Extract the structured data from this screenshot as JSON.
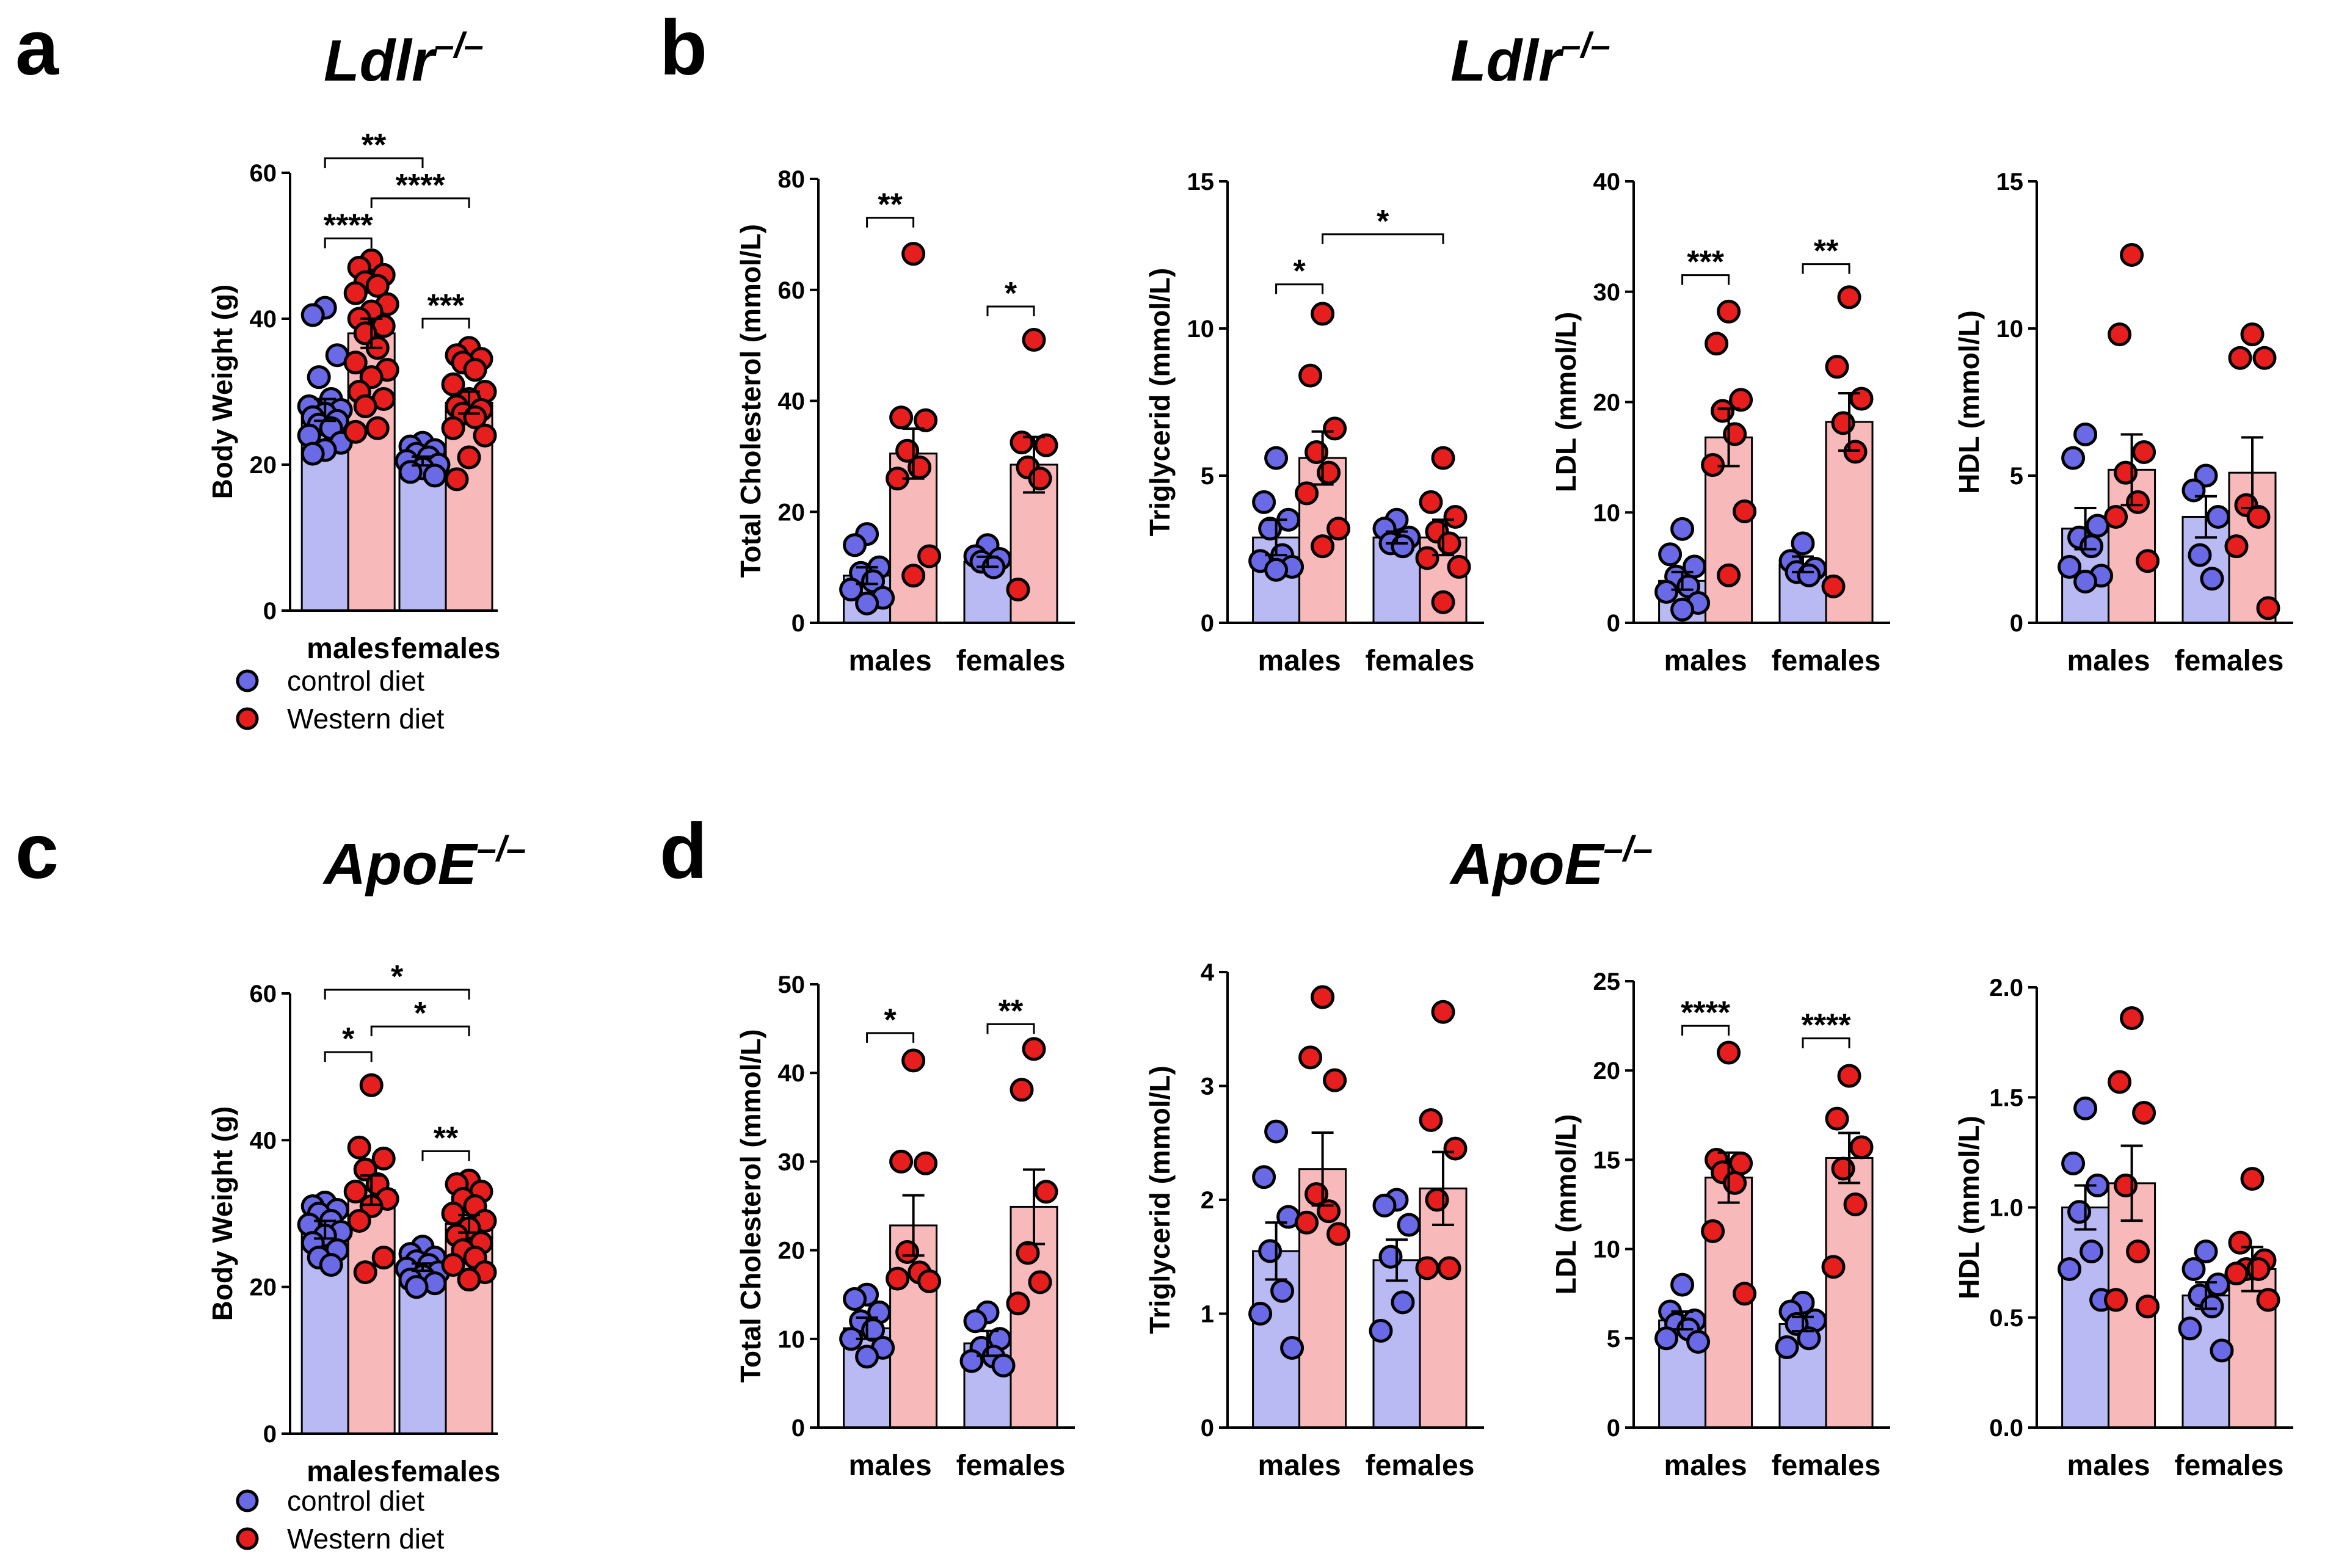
{
  "colors": {
    "control_bar": "#b9b9f4",
    "control_point": "#6a6ae6",
    "western_bar": "#f7b9b9",
    "western_point": "#e61e1e",
    "axis": "#000000"
  },
  "legend": {
    "control": "control diet",
    "western": "Western diet"
  },
  "panels": [
    {
      "letter": "a",
      "title_italic": "Ldlr",
      "title_sup": "–/–"
    },
    {
      "letter": "b",
      "title_italic": "Ldlr",
      "title_sup": "–/–"
    },
    {
      "letter": "c",
      "title_italic": "ApoE",
      "title_sup": "–/–"
    },
    {
      "letter": "d",
      "title_italic": "ApoE",
      "title_sup": "–/–"
    }
  ],
  "chart_data": [
    {
      "id": "a-bw",
      "panel": "a",
      "type": "bar",
      "ylabel": "Body Weight (g)",
      "ylim": [
        0,
        60
      ],
      "yticks": [
        "0",
        "20",
        "40",
        "60"
      ],
      "categories": [
        "males",
        "females"
      ],
      "series": [
        {
          "name": "control diet",
          "means": [
            27.5,
            20.5
          ],
          "sem": [
            1.5,
            0.6
          ],
          "points": [
            [
              41.5,
              40.5,
              35,
              32,
              29,
              28,
              27.5,
              27,
              26.5,
              26,
              25.5,
              25,
              24,
              23,
              22,
              21.5
            ],
            [
              23,
              22.5,
              22,
              21.5,
              21,
              20.5,
              20,
              19.5,
              19,
              18.5
            ]
          ]
        },
        {
          "name": "Western diet",
          "means": [
            38,
            28.5
          ],
          "sem": [
            2,
            1.5
          ],
          "points": [
            [
              48,
              47,
              46,
              45,
              44.5,
              43.5,
              42,
              41,
              40,
              39,
              38,
              36,
              34,
              33,
              32,
              30,
              29,
              28,
              25,
              24.5
            ],
            [
              36,
              35,
              34.5,
              34,
              33,
              31,
              30,
              29,
              28,
              27.5,
              27,
              26.5,
              25,
              24,
              21,
              18
            ]
          ]
        }
      ],
      "sig": [
        {
          "from": [
            0,
            0
          ],
          "to": [
            1,
            0
          ],
          "label": "**",
          "y": 62
        },
        {
          "from": [
            0,
            1
          ],
          "to": [
            1,
            1
          ],
          "label": "****",
          "y": 56.5
        },
        {
          "from": [
            0,
            0
          ],
          "to": [
            0,
            1
          ],
          "label": "****",
          "y": 51
        },
        {
          "from": [
            1,
            0
          ],
          "to": [
            1,
            1
          ],
          "label": "***",
          "y": 40
        }
      ]
    },
    {
      "id": "b-tc",
      "panel": "b",
      "type": "bar",
      "ylabel": "Total Cholesterol (mmol/L)",
      "ylim": [
        0,
        80
      ],
      "yticks": [
        "0",
        "20",
        "40",
        "60",
        "80"
      ],
      "categories": [
        "males",
        "females"
      ],
      "series": [
        {
          "name": "control diet",
          "means": [
            8.5,
            11
          ],
          "sem": [
            1.5,
            0.9
          ],
          "points": [
            [
              16,
              14,
              10,
              9,
              7.5,
              6,
              4.5,
              3.5
            ],
            [
              14,
              12,
              11.5,
              11,
              10
            ]
          ]
        },
        {
          "name": "Western diet",
          "means": [
            30.5,
            28.5
          ],
          "sem": [
            4.5,
            5
          ],
          "points": [
            [
              66.5,
              37,
              36.5,
              31,
              28,
              26,
              12,
              8.5
            ],
            [
              51,
              32.5,
              32,
              28,
              26,
              6
            ]
          ]
        }
      ],
      "sig": [
        {
          "from": [
            0,
            0
          ],
          "to": [
            0,
            1
          ],
          "label": "**",
          "y": 73
        },
        {
          "from": [
            1,
            0
          ],
          "to": [
            1,
            1
          ],
          "label": "*",
          "y": 57
        }
      ]
    },
    {
      "id": "b-tg",
      "panel": "b",
      "type": "bar",
      "ylabel": "Triglycerid (mmol/L)",
      "ylim": [
        0,
        15
      ],
      "yticks": [
        "0",
        "5",
        "10",
        "15"
      ],
      "categories": [
        "males",
        "females"
      ],
      "series": [
        {
          "name": "control diet",
          "means": [
            2.9,
            2.9
          ],
          "sem": [
            0.6,
            0.2
          ],
          "points": [
            [
              5.6,
              4.1,
              3.5,
              3.2,
              2.3,
              2.1,
              1.9,
              1.8
            ],
            [
              3.5,
              3.2,
              2.9,
              2.7,
              2.6
            ]
          ]
        },
        {
          "name": "Western diet",
          "means": [
            5.6,
            2.9
          ],
          "sem": [
            0.9,
            0.6
          ],
          "points": [
            [
              10.5,
              8.4,
              6.6,
              5.8,
              5.1,
              4.4,
              3.2,
              2.6
            ],
            [
              5.6,
              4.1,
              3.6,
              3.1,
              2.7,
              2.2,
              1.9,
              0.7
            ]
          ]
        }
      ],
      "sig": [
        {
          "from": [
            0,
            0
          ],
          "to": [
            0,
            1
          ],
          "label": "*",
          "y": 11.5
        },
        {
          "from": [
            0,
            1
          ],
          "to": [
            1,
            1
          ],
          "label": "*",
          "y": 13.2
        }
      ]
    },
    {
      "id": "b-ldl",
      "panel": "b",
      "type": "bar",
      "ylabel": "LDL (mmol/L)",
      "ylim": [
        0,
        40
      ],
      "yticks": [
        "0",
        "10",
        "20",
        "30",
        "40"
      ],
      "categories": [
        "males",
        "females"
      ],
      "series": [
        {
          "name": "control diet",
          "means": [
            3.8,
            5.3
          ],
          "sem": [
            0.8,
            0.7
          ],
          "points": [
            [
              8.5,
              6.2,
              5.1,
              4.2,
              3.3,
              2.8,
              1.8,
              1.2
            ],
            [
              7.2,
              5.6,
              4.9,
              4.6,
              4.3
            ]
          ]
        },
        {
          "name": "Western diet",
          "means": [
            16.8,
            18.2
          ],
          "sem": [
            2.6,
            2.6
          ],
          "points": [
            [
              28.2,
              25.3,
              20.2,
              19.2,
              17.1,
              14.3,
              10.1,
              4.3
            ],
            [
              29.5,
              23.2,
              20.3,
              18.1,
              15.5,
              3.3
            ]
          ]
        }
      ],
      "sig": [
        {
          "from": [
            0,
            0
          ],
          "to": [
            0,
            1
          ],
          "label": "***",
          "y": 31.5
        },
        {
          "from": [
            1,
            0
          ],
          "to": [
            1,
            1
          ],
          "label": "**",
          "y": 32.5
        }
      ]
    },
    {
      "id": "b-hdl",
      "panel": "b",
      "type": "bar",
      "ylabel": "HDL (mmol/L)",
      "ylim": [
        0,
        15
      ],
      "yticks": [
        "0",
        "5",
        "10",
        "15"
      ],
      "categories": [
        "males",
        "females"
      ],
      "series": [
        {
          "name": "control diet",
          "means": [
            3.2,
            3.6
          ],
          "sem": [
            0.7,
            0.7
          ],
          "points": [
            [
              6.4,
              5.6,
              3.3,
              2.9,
              2.6,
              1.9,
              1.6,
              1.4
            ],
            [
              5,
              4.5,
              3.6,
              2.3,
              1.5
            ]
          ]
        },
        {
          "name": "Western diet",
          "means": [
            5.2,
            5.1
          ],
          "sem": [
            1.2,
            1.2
          ],
          "points": [
            [
              12.5,
              9.8,
              5.8,
              5.1,
              4.1,
              3.6,
              2.1
            ],
            [
              9.8,
              9,
              9,
              4,
              3.6,
              2.6,
              0.5
            ]
          ]
        }
      ],
      "sig": []
    },
    {
      "id": "c-bw",
      "panel": "c",
      "type": "bar",
      "ylabel": "Body Weight (g)",
      "ylim": [
        0,
        60
      ],
      "yticks": [
        "0",
        "20",
        "40",
        "60"
      ],
      "categories": [
        "males",
        "females"
      ],
      "series": [
        {
          "name": "control diet",
          "means": [
            27.8,
            22.7
          ],
          "sem": [
            1.2,
            0.5
          ],
          "points": [
            [
              31.5,
              31,
              30.5,
              30,
              29,
              28.5,
              27.5,
              27,
              26,
              25,
              24,
              23
            ],
            [
              25.5,
              24.5,
              24,
              23.5,
              23,
              22.5,
              22,
              21.5,
              21,
              20.5,
              20
            ]
          ]
        },
        {
          "name": "Western diet",
          "means": [
            33.2,
            28.6
          ],
          "sem": [
            2,
            1.2
          ],
          "points": [
            [
              47.5,
              39,
              37.5,
              36,
              34,
              33,
              32,
              31,
              29,
              24,
              22
            ],
            [
              34.5,
              34,
              33,
              32,
              31,
              30,
              29,
              28,
              27,
              26,
              25,
              24,
              23,
              22,
              21
            ]
          ]
        }
      ],
      "sig": [
        {
          "from": [
            0,
            0
          ],
          "to": [
            1,
            1
          ],
          "label": "*",
          "y": 60.5
        },
        {
          "from": [
            0,
            1
          ],
          "to": [
            1,
            1
          ],
          "label": "*",
          "y": 55.5
        },
        {
          "from": [
            0,
            0
          ],
          "to": [
            0,
            1
          ],
          "label": "*",
          "y": 52
        },
        {
          "from": [
            1,
            0
          ],
          "to": [
            1,
            1
          ],
          "label": "**",
          "y": 38.5
        }
      ]
    },
    {
      "id": "d-tc",
      "panel": "d",
      "type": "bar",
      "ylabel": "Total Cholesterol (mmol/L)",
      "ylim": [
        0,
        50
      ],
      "yticks": [
        "0",
        "10",
        "20",
        "30",
        "40",
        "50"
      ],
      "categories": [
        "males",
        "females"
      ],
      "series": [
        {
          "name": "control diet",
          "means": [
            11.2,
            9.5
          ],
          "sem": [
            1.2,
            1.4
          ],
          "points": [
            [
              15,
              14.5,
              13,
              12,
              11,
              10,
              9,
              8
            ],
            [
              13,
              12,
              10,
              9,
              8,
              7.5,
              7
            ]
          ]
        },
        {
          "name": "Western diet",
          "means": [
            22.8,
            24.9
          ],
          "sem": [
            3.4,
            4.2
          ],
          "points": [
            [
              41.4,
              30,
              29.8,
              19.8,
              17.5,
              16.8,
              16.5
            ],
            [
              42.7,
              38.1,
              26.6,
              19.7,
              16.4,
              14
            ]
          ]
        }
      ],
      "sig": [
        {
          "from": [
            0,
            0
          ],
          "to": [
            0,
            1
          ],
          "label": "*",
          "y": 44.5
        },
        {
          "from": [
            1,
            0
          ],
          "to": [
            1,
            1
          ],
          "label": "**",
          "y": 45.5
        }
      ]
    },
    {
      "id": "d-tg",
      "panel": "d",
      "type": "bar",
      "ylabel": "Triglycerid (mmol/L)",
      "ylim": [
        0,
        4
      ],
      "yticks": [
        "0",
        "1",
        "2",
        "3",
        "4"
      ],
      "categories": [
        "males",
        "females"
      ],
      "series": [
        {
          "name": "control diet",
          "means": [
            1.55,
            1.47
          ],
          "sem": [
            0.25,
            0.18
          ],
          "points": [
            [
              2.6,
              2.2,
              1.85,
              1.55,
              1.2,
              1,
              0.7
            ],
            [
              2,
              1.95,
              1.78,
              1.5,
              1.1,
              0.85
            ]
          ]
        },
        {
          "name": "Western diet",
          "means": [
            2.27,
            2.1
          ],
          "sem": [
            0.32,
            0.32
          ],
          "points": [
            [
              3.78,
              3.25,
              3.05,
              2.05,
              1.9,
              1.8,
              1.7
            ],
            [
              3.65,
              2.7,
              2.45,
              2,
              1.4,
              1.4
            ]
          ]
        }
      ],
      "sig": []
    },
    {
      "id": "d-ldl",
      "panel": "d",
      "type": "bar",
      "ylabel": "LDL (mmol/L)",
      "ylim": [
        0,
        25
      ],
      "yticks": [
        "0",
        "5",
        "10",
        "15",
        "20",
        "25"
      ],
      "categories": [
        "males",
        "females"
      ],
      "series": [
        {
          "name": "control diet",
          "means": [
            6,
            5.8
          ],
          "sem": [
            0.5,
            0.4
          ],
          "points": [
            [
              8,
              6.5,
              6,
              5.8,
              5.5,
              5,
              4.8
            ],
            [
              7,
              6.5,
              6,
              5.8,
              5,
              4.5
            ]
          ]
        },
        {
          "name": "Western diet",
          "means": [
            14,
            15.1
          ],
          "sem": [
            1.4,
            1.4
          ],
          "points": [
            [
              21,
              15,
              14.8,
              14.3,
              13.7,
              11,
              7.5
            ],
            [
              19.7,
              17.3,
              15.7,
              14.5,
              12.5,
              9
            ]
          ]
        }
      ],
      "sig": [
        {
          "from": [
            0,
            0
          ],
          "to": [
            0,
            1
          ],
          "label": "****",
          "y": 22.5
        },
        {
          "from": [
            1,
            0
          ],
          "to": [
            1,
            1
          ],
          "label": "****",
          "y": 21.8
        }
      ]
    },
    {
      "id": "d-hdl",
      "panel": "d",
      "type": "bar",
      "ylabel": "HDL (mmol/L)",
      "ylim": [
        0,
        2
      ],
      "yticks": [
        "0.0",
        "0.5",
        "1.0",
        "1.5",
        "2.0"
      ],
      "categories": [
        "males",
        "females"
      ],
      "series": [
        {
          "name": "control diet",
          "means": [
            1.0,
            0.6
          ],
          "sem": [
            0.1,
            0.06
          ],
          "points": [
            [
              1.45,
              1.2,
              1.1,
              0.98,
              0.8,
              0.72,
              0.58
            ],
            [
              0.8,
              0.72,
              0.65,
              0.6,
              0.55,
              0.45,
              0.35
            ]
          ]
        },
        {
          "name": "Western diet",
          "means": [
            1.11,
            0.72
          ],
          "sem": [
            0.17,
            0.1
          ],
          "points": [
            [
              1.86,
              1.57,
              1.43,
              1.1,
              0.8,
              0.58,
              0.55
            ],
            [
              1.13,
              0.84,
              0.76,
              0.72,
              0.72,
              0.7,
              0.58
            ]
          ]
        }
      ],
      "sig": []
    }
  ]
}
